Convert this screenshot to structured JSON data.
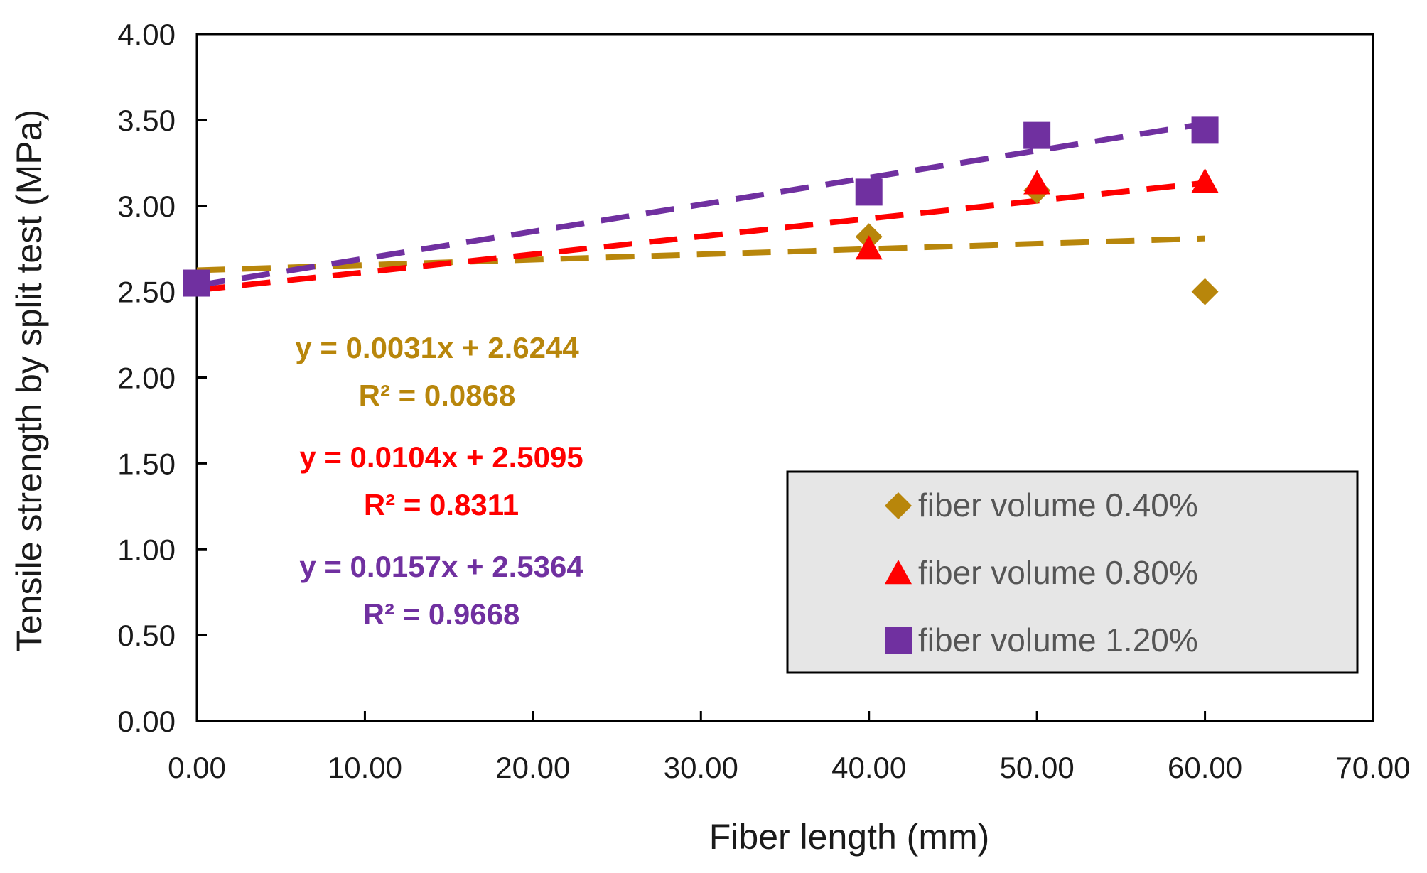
{
  "chart_data": {
    "type": "scatter",
    "xlabel": "Fiber length (mm)",
    "ylabel": "Tensile strength by split test (MPa)",
    "xlim": [
      0,
      70
    ],
    "ylim": [
      0,
      4
    ],
    "x_ticks": [
      "0.00",
      "10.00",
      "20.00",
      "30.00",
      "40.00",
      "50.00",
      "60.00",
      "70.00"
    ],
    "y_ticks": [
      "0.00",
      "0.50",
      "1.00",
      "1.50",
      "2.00",
      "2.50",
      "3.00",
      "3.50",
      "4.00"
    ],
    "grid": false,
    "legend_position": "bottom-right",
    "series": [
      {
        "name": "fiber volume 0.40%",
        "marker": "diamond",
        "color": "#b8860b",
        "x": [
          0,
          40,
          50,
          60
        ],
        "y": [
          2.55,
          2.82,
          3.09,
          2.5
        ],
        "trendline": {
          "slope": 0.0031,
          "intercept": 2.6244,
          "equation": "y = 0.0031x + 2.6244",
          "r2": "R² = 0.0868"
        }
      },
      {
        "name": "fiber volume 0.80%",
        "marker": "triangle",
        "color": "#ff0000",
        "x": [
          0,
          40,
          50,
          60
        ],
        "y": [
          2.55,
          2.75,
          3.13,
          3.14
        ],
        "trendline": {
          "slope": 0.0104,
          "intercept": 2.5095,
          "equation": "y = 0.0104x + 2.5095",
          "r2": "R² = 0.8311"
        }
      },
      {
        "name": "fiber volume 1.20%",
        "marker": "square",
        "color": "#7030a0",
        "x": [
          0,
          40,
          50,
          60
        ],
        "y": [
          2.55,
          3.08,
          3.41,
          3.44
        ],
        "trendline": {
          "slope": 0.0157,
          "intercept": 2.5364,
          "equation": "y = 0.0157x + 2.5364",
          "r2": "R² = 0.9668"
        }
      }
    ]
  }
}
